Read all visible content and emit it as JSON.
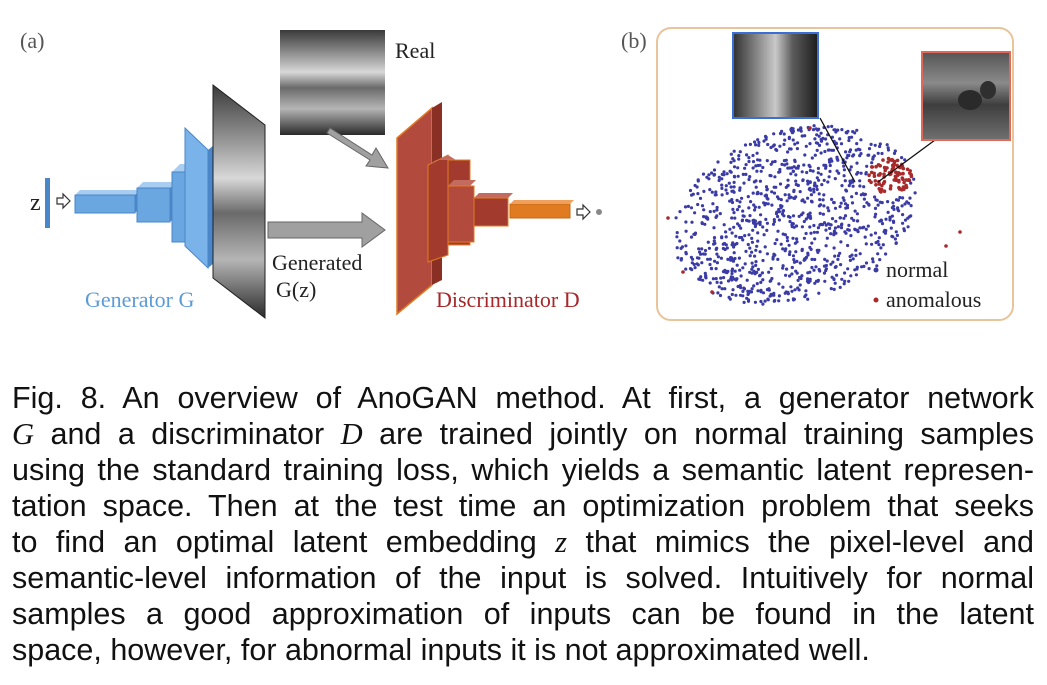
{
  "panel_a": {
    "label": "(a)",
    "z_label": "z",
    "real_label": "Real",
    "generated_label_1": "Generated",
    "generated_label_2": "G(z)",
    "generator_label": "Generator G",
    "discriminator_label": "Discriminator D",
    "colors": {
      "generator": "#6aa6e0",
      "discriminator": "#a23b2e",
      "output": "#e07b22",
      "arrow": "#9a9a9a"
    }
  },
  "panel_b": {
    "label": "(b)",
    "legend": {
      "normal": "normal",
      "anomalous": "anomalous"
    },
    "colors": {
      "normal": "#3b3ba6",
      "anomalous": "#a82a2a",
      "frame": "#e8c49a",
      "inset_normal_border": "#3b6fd6",
      "inset_anomalous_border": "#e06a5a"
    }
  },
  "caption": {
    "lines": [
      "Fig. 8. An overview of AnoGAN method. At first, a generator network",
      [
        "",
        "G",
        " and a discriminator ",
        "D",
        " are trained jointly on normal training samples"
      ],
      "using the standard training loss, which yields a semantic latent represen-",
      "tation space. Then at the test time an optimization problem that seeks",
      [
        "to find an optimal latent embedding ",
        "z",
        " that mimics the pixel-level and"
      ],
      "semantic-level information of the input is solved. Intuitively for normal",
      "samples a good approximation of inputs can be found in the latent",
      "space, however, for abnormal inputs it is not approximated well."
    ]
  }
}
